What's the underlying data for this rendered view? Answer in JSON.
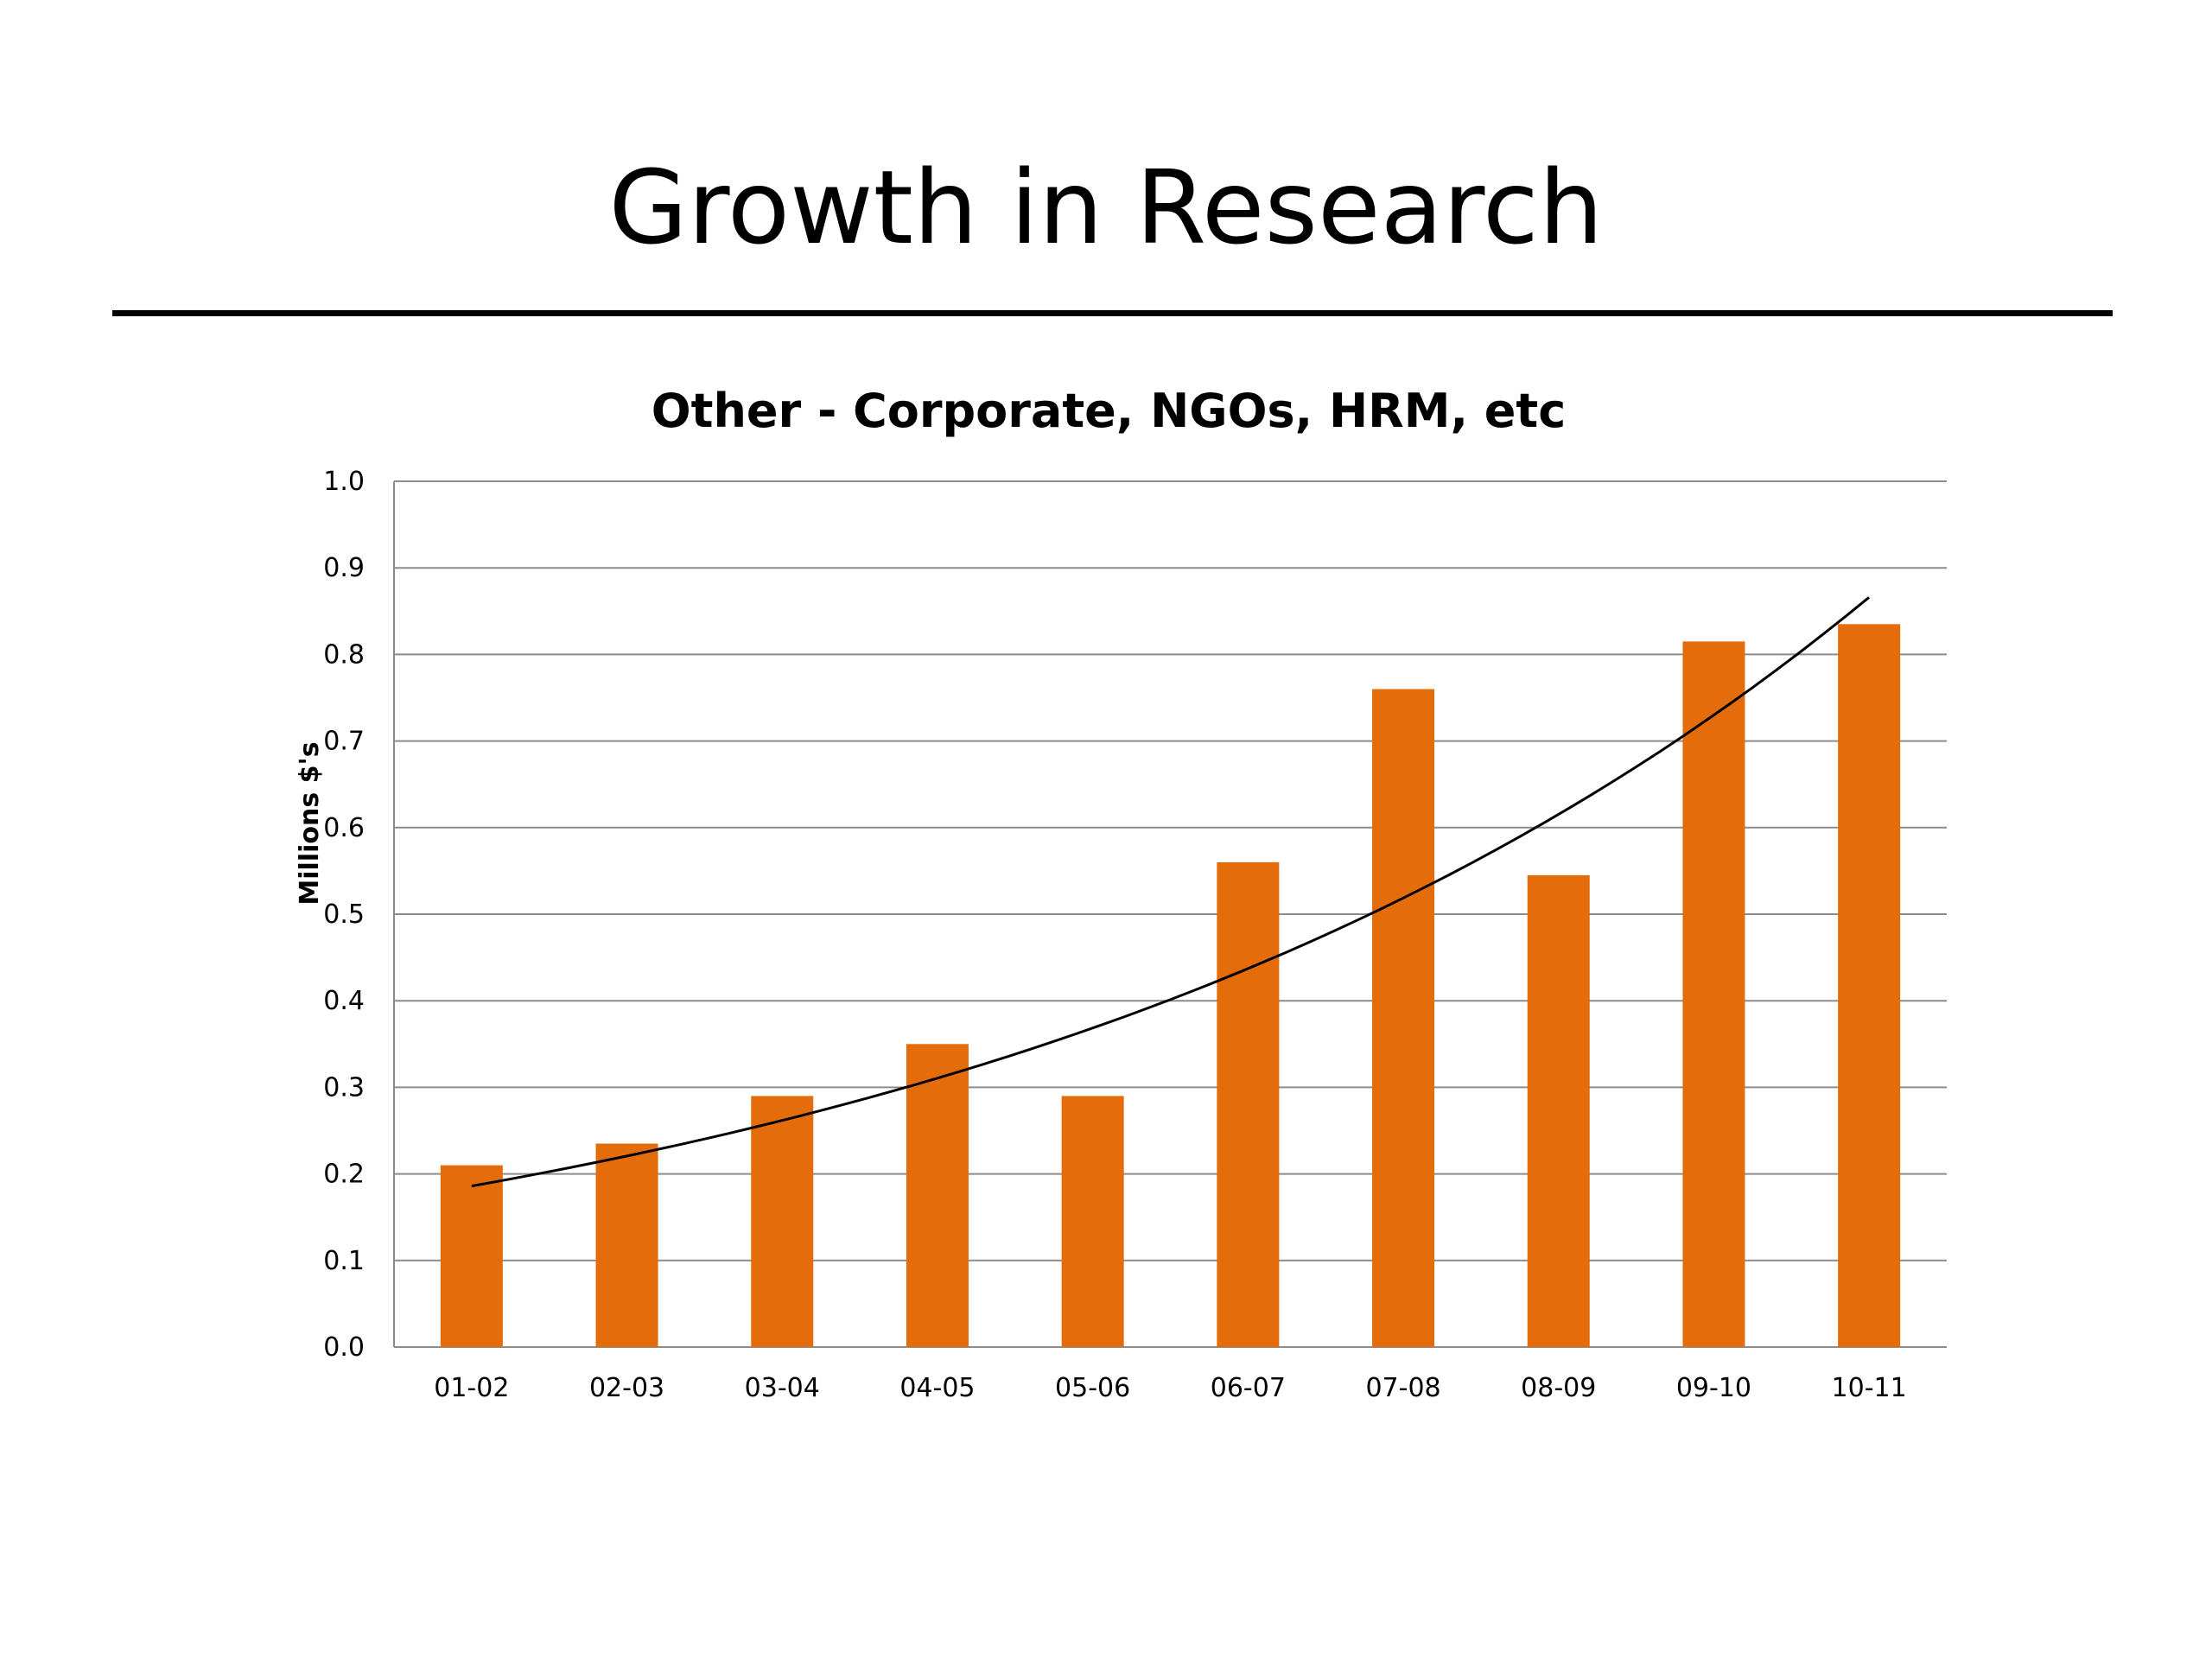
{
  "slide": {
    "title": "Growth in Research"
  },
  "chart_data": {
    "type": "bar",
    "title": "Other - Corporate, NGOs, HRM, etc",
    "xlabel": "",
    "ylabel": "Millions $'s",
    "categories": [
      "01-02",
      "02-03",
      "03-04",
      "04-05",
      "05-06",
      "06-07",
      "07-08",
      "08-09",
      "09-10",
      "10-11"
    ],
    "series": [
      {
        "values": [
          0.21,
          0.235,
          0.29,
          0.35,
          0.29,
          0.56,
          0.76,
          0.545,
          0.815,
          0.835
        ],
        "color": "#e46c0a"
      }
    ],
    "trendline": {
      "type": "exponential",
      "color": "#000000",
      "start": 0.186,
      "end": 0.866
    },
    "ylim": [
      0,
      1.0
    ],
    "yticks": [
      "0.0",
      "0.1",
      "0.2",
      "0.3",
      "0.4",
      "0.5",
      "0.6",
      "0.7",
      "0.8",
      "0.9",
      "1.0"
    ],
    "grid": true,
    "legend": "none"
  }
}
